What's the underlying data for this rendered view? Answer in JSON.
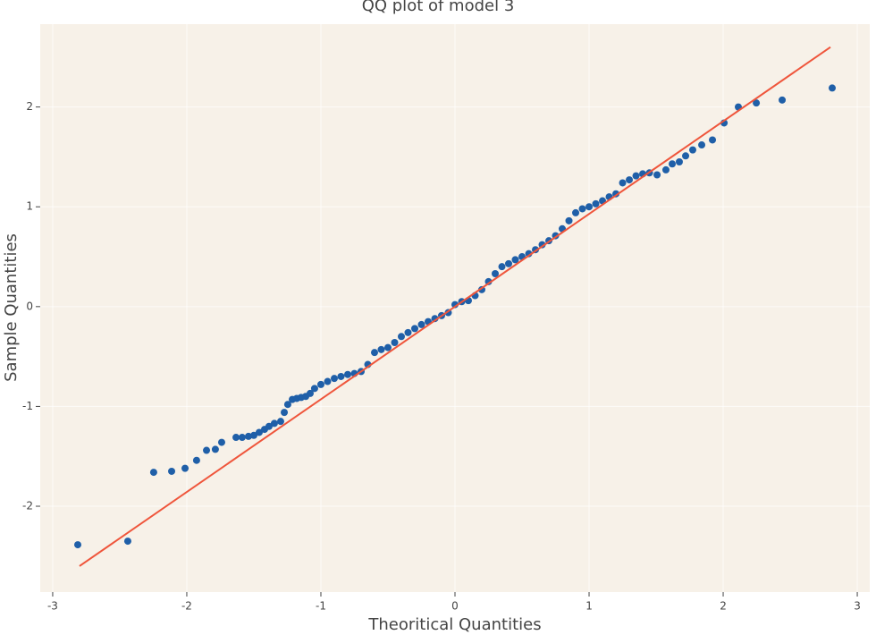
{
  "chart_data": {
    "type": "scatter",
    "title": "QQ plot of model 3",
    "x_label": "Theoritical Quantities",
    "y_label": "Sample Quantities",
    "xlim": [
      -3.093,
      3.093
    ],
    "ylim": [
      -2.86,
      2.83
    ],
    "xticks": [
      -3,
      -2,
      -1,
      0,
      1,
      2,
      3
    ],
    "yticks": [
      -2,
      -1,
      0,
      1,
      2
    ],
    "grid": true,
    "series": [
      {
        "type": "scatter",
        "color": "#1f5fa8",
        "x": [
          -2.813,
          -2.44,
          -2.247,
          -2.113,
          -2.013,
          -1.927,
          -1.853,
          -1.787,
          -1.74,
          -1.633,
          -1.587,
          -1.54,
          -1.5,
          -1.46,
          -1.42,
          -1.387,
          -1.347,
          -1.3,
          -1.273,
          -1.247,
          -1.213,
          -1.18,
          -1.147,
          -1.113,
          -1.08,
          -1.047,
          -1.0,
          -0.95,
          -0.9,
          -0.85,
          -0.8,
          -0.75,
          -0.7,
          -0.65,
          -0.6,
          -0.55,
          -0.5,
          -0.45,
          -0.4,
          -0.35,
          -0.3,
          -0.25,
          -0.2,
          -0.15,
          -0.1,
          -0.05,
          0,
          0.05,
          0.1,
          0.15,
          0.2,
          0.25,
          0.3,
          0.35,
          0.4,
          0.45,
          0.5,
          0.55,
          0.6,
          0.65,
          0.7,
          0.75,
          0.8,
          0.85,
          0.9,
          0.95,
          1.0,
          1.05,
          1.1,
          1.15,
          1.2,
          1.25,
          1.3,
          1.35,
          1.4,
          1.45,
          1.507,
          1.573,
          1.62,
          1.673,
          1.72,
          1.773,
          1.84,
          1.92,
          2.007,
          2.113,
          2.247,
          2.44,
          2.813
        ],
        "values": [
          -2.386,
          -2.35,
          -1.66,
          -1.65,
          -1.62,
          -1.54,
          -1.44,
          -1.43,
          -1.36,
          -1.31,
          -1.31,
          -1.3,
          -1.29,
          -1.26,
          -1.23,
          -1.2,
          -1.17,
          -1.15,
          -1.06,
          -0.98,
          -0.93,
          -0.92,
          -0.91,
          -0.9,
          -0.87,
          -0.82,
          -0.78,
          -0.75,
          -0.72,
          -0.7,
          -0.68,
          -0.67,
          -0.65,
          -0.58,
          -0.46,
          -0.43,
          -0.41,
          -0.36,
          -0.3,
          -0.26,
          -0.22,
          -0.18,
          -0.15,
          -0.12,
          -0.09,
          -0.06,
          0.02,
          0.05,
          0.06,
          0.11,
          0.17,
          0.25,
          0.33,
          0.4,
          0.43,
          0.47,
          0.5,
          0.53,
          0.57,
          0.62,
          0.66,
          0.71,
          0.78,
          0.86,
          0.94,
          0.98,
          1.0,
          1.03,
          1.06,
          1.1,
          1.13,
          1.24,
          1.27,
          1.31,
          1.33,
          1.34,
          1.32,
          1.37,
          1.43,
          1.45,
          1.51,
          1.57,
          1.62,
          1.67,
          1.84,
          2.0,
          2.04,
          2.07,
          2.19
        ]
      },
      {
        "type": "line",
        "color": "#ef553b",
        "x": [
          -2.8,
          2.8
        ],
        "values": [
          -2.6,
          2.6
        ]
      }
    ]
  }
}
